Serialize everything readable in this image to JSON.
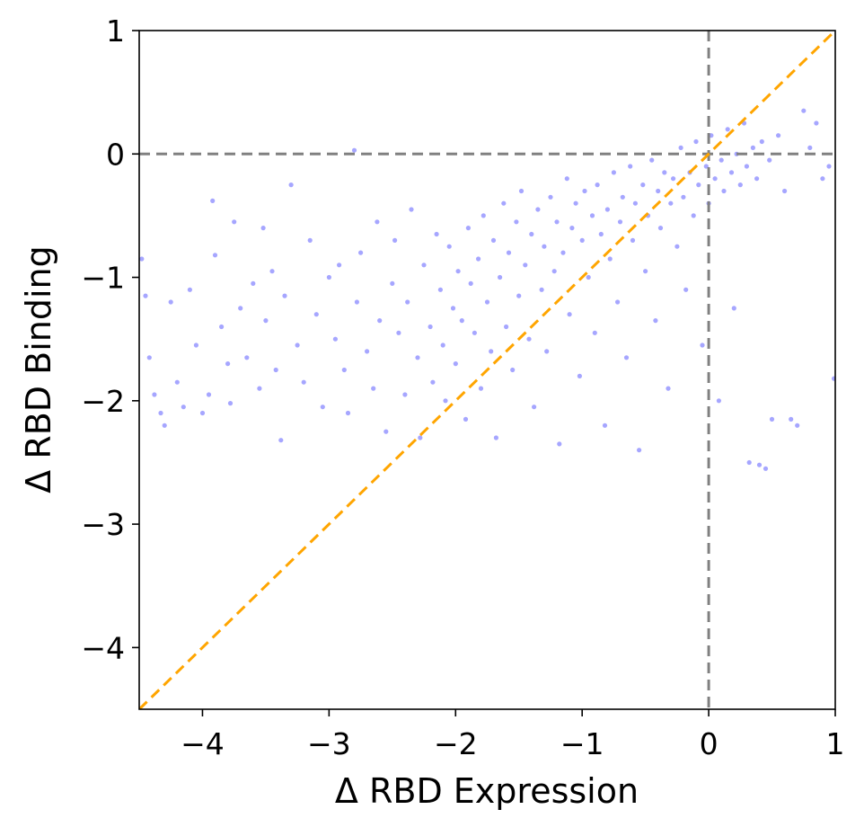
{
  "chart_data": {
    "type": "scatter",
    "title": "",
    "xlabel": "Δ RBD Expression",
    "ylabel": "Δ RBD Binding",
    "xlim": [
      -4.5,
      1
    ],
    "ylim": [
      -4.5,
      1
    ],
    "xticks": [
      -4,
      -3,
      -2,
      -1,
      0,
      1
    ],
    "yticks": [
      -4,
      -3,
      -2,
      -1,
      0,
      1
    ],
    "xtick_labels": [
      "−4",
      "−3",
      "−2",
      "−1",
      "0",
      "1"
    ],
    "ytick_labels": [
      "−4",
      "−3",
      "−2",
      "−1",
      "0",
      "1"
    ],
    "grid": false,
    "legend": "none",
    "reference_lines": [
      {
        "kind": "horizontal",
        "y": 0,
        "style": "dashed",
        "color": "#808080"
      },
      {
        "kind": "vertical",
        "x": 0,
        "style": "dashed",
        "color": "#808080"
      },
      {
        "kind": "diagonal",
        "slope": 1,
        "intercept": 0,
        "style": "dashed",
        "color": "#FFA500"
      }
    ],
    "series": [
      {
        "color": "#0000FF",
        "opacity": 0.35,
        "point_count": "approximately 4000",
        "points": [
          [
            -4.48,
            -0.85
          ],
          [
            -4.45,
            -1.15
          ],
          [
            -4.42,
            -1.65
          ],
          [
            -4.38,
            -1.95
          ],
          [
            -4.33,
            -2.1
          ],
          [
            -4.3,
            -2.2
          ],
          [
            -4.25,
            -1.2
          ],
          [
            -4.2,
            -1.85
          ],
          [
            -4.15,
            -2.05
          ],
          [
            -4.1,
            -1.1
          ],
          [
            -4.05,
            -1.55
          ],
          [
            -4.0,
            -2.1
          ],
          [
            -3.95,
            -1.95
          ],
          [
            -3.92,
            -0.38
          ],
          [
            -3.9,
            -0.82
          ],
          [
            -3.85,
            -1.4
          ],
          [
            -3.8,
            -1.7
          ],
          [
            -3.78,
            -2.02
          ],
          [
            -3.75,
            -0.55
          ],
          [
            -3.7,
            -1.25
          ],
          [
            -3.65,
            -1.65
          ],
          [
            -3.6,
            -1.05
          ],
          [
            -3.55,
            -1.9
          ],
          [
            -3.52,
            -0.6
          ],
          [
            -3.5,
            -1.35
          ],
          [
            -3.45,
            -0.95
          ],
          [
            -3.42,
            -1.75
          ],
          [
            -3.38,
            -2.32
          ],
          [
            -3.35,
            -1.15
          ],
          [
            -3.3,
            -0.25
          ],
          [
            -3.25,
            -1.55
          ],
          [
            -3.2,
            -1.85
          ],
          [
            -3.15,
            -0.7
          ],
          [
            -3.1,
            -1.3
          ],
          [
            -3.05,
            -2.05
          ],
          [
            -3.0,
            -1.0
          ],
          [
            -2.95,
            -1.5
          ],
          [
            -2.92,
            -0.9
          ],
          [
            -2.88,
            -1.75
          ],
          [
            -2.85,
            -2.1
          ],
          [
            -2.8,
            0.03
          ],
          [
            -2.78,
            -1.2
          ],
          [
            -2.75,
            -0.8
          ],
          [
            -2.7,
            -1.6
          ],
          [
            -2.65,
            -1.9
          ],
          [
            -2.62,
            -0.55
          ],
          [
            -2.6,
            -1.35
          ],
          [
            -2.55,
            -2.25
          ],
          [
            -2.5,
            -1.05
          ],
          [
            -2.48,
            -0.7
          ],
          [
            -2.45,
            -1.45
          ],
          [
            -2.4,
            -1.95
          ],
          [
            -2.38,
            -1.2
          ],
          [
            -2.35,
            -0.45
          ],
          [
            -2.3,
            -1.65
          ],
          [
            -2.28,
            -2.3
          ],
          [
            -2.25,
            -0.9
          ],
          [
            -2.2,
            -1.4
          ],
          [
            -2.18,
            -1.85
          ],
          [
            -2.15,
            -0.65
          ],
          [
            -2.12,
            -1.1
          ],
          [
            -2.1,
            -1.55
          ],
          [
            -2.08,
            -2.0
          ],
          [
            -2.05,
            -0.75
          ],
          [
            -2.02,
            -1.25
          ],
          [
            -2.0,
            -1.7
          ],
          [
            -1.98,
            -0.95
          ],
          [
            -1.95,
            -1.35
          ],
          [
            -1.92,
            -2.15
          ],
          [
            -1.9,
            -0.6
          ],
          [
            -1.88,
            -1.05
          ],
          [
            -1.85,
            -1.45
          ],
          [
            -1.82,
            -0.85
          ],
          [
            -1.8,
            -1.9
          ],
          [
            -1.78,
            -0.5
          ],
          [
            -1.75,
            -1.2
          ],
          [
            -1.72,
            -1.6
          ],
          [
            -1.7,
            -0.7
          ],
          [
            -1.68,
            -2.3
          ],
          [
            -1.65,
            -1.0
          ],
          [
            -1.62,
            -0.4
          ],
          [
            -1.6,
            -1.4
          ],
          [
            -1.58,
            -0.8
          ],
          [
            -1.55,
            -1.75
          ],
          [
            -1.52,
            -0.55
          ],
          [
            -1.5,
            -1.15
          ],
          [
            -1.48,
            -0.3
          ],
          [
            -1.45,
            -0.9
          ],
          [
            -1.42,
            -1.5
          ],
          [
            -1.4,
            -0.65
          ],
          [
            -1.38,
            -2.05
          ],
          [
            -1.35,
            -0.45
          ],
          [
            -1.32,
            -1.1
          ],
          [
            -1.3,
            -0.75
          ],
          [
            -1.28,
            -1.6
          ],
          [
            -1.25,
            -0.35
          ],
          [
            -1.22,
            -0.95
          ],
          [
            -1.2,
            -0.55
          ],
          [
            -1.18,
            -2.35
          ],
          [
            -1.15,
            -0.8
          ],
          [
            -1.12,
            -0.2
          ],
          [
            -1.1,
            -1.3
          ],
          [
            -1.08,
            -0.6
          ],
          [
            -1.05,
            -0.4
          ],
          [
            -1.02,
            -1.8
          ],
          [
            -1.0,
            -0.7
          ],
          [
            -0.98,
            -0.3
          ],
          [
            -0.95,
            -1.0
          ],
          [
            -0.92,
            -0.5
          ],
          [
            -0.9,
            -1.45
          ],
          [
            -0.88,
            -0.25
          ],
          [
            -0.85,
            -0.65
          ],
          [
            -0.82,
            -2.2
          ],
          [
            -0.8,
            -0.45
          ],
          [
            -0.78,
            -0.85
          ],
          [
            -0.75,
            -0.15
          ],
          [
            -0.72,
            -1.2
          ],
          [
            -0.7,
            -0.55
          ],
          [
            -0.68,
            -0.35
          ],
          [
            -0.65,
            -1.65
          ],
          [
            -0.62,
            -0.1
          ],
          [
            -0.6,
            -0.7
          ],
          [
            -0.58,
            -0.4
          ],
          [
            -0.55,
            -2.4
          ],
          [
            -0.52,
            -0.25
          ],
          [
            -0.5,
            -0.95
          ],
          [
            -0.48,
            -0.5
          ],
          [
            -0.45,
            -0.05
          ],
          [
            -0.42,
            -1.35
          ],
          [
            -0.4,
            -0.3
          ],
          [
            -0.38,
            -0.6
          ],
          [
            -0.35,
            -0.15
          ],
          [
            -0.32,
            -1.9
          ],
          [
            -0.3,
            -0.4
          ],
          [
            -0.28,
            -0.2
          ],
          [
            -0.25,
            -0.75
          ],
          [
            -0.22,
            0.05
          ],
          [
            -0.2,
            -0.35
          ],
          [
            -0.18,
            -1.1
          ],
          [
            -0.15,
            -0.15
          ],
          [
            -0.12,
            -0.5
          ],
          [
            -0.1,
            0.1
          ],
          [
            -0.08,
            -0.25
          ],
          [
            -0.05,
            -1.55
          ],
          [
            -0.02,
            -0.1
          ],
          [
            0.0,
            -0.4
          ],
          [
            0.02,
            0.15
          ],
          [
            0.05,
            -0.2
          ],
          [
            0.08,
            -2.0
          ],
          [
            0.1,
            -0.05
          ],
          [
            0.12,
            -0.3
          ],
          [
            0.15,
            0.2
          ],
          [
            0.18,
            -0.15
          ],
          [
            0.2,
            -1.25
          ],
          [
            0.22,
            0.0
          ],
          [
            0.25,
            -0.25
          ],
          [
            0.28,
            0.25
          ],
          [
            0.3,
            -0.1
          ],
          [
            0.32,
            -2.5
          ],
          [
            0.35,
            0.05
          ],
          [
            0.38,
            -0.2
          ],
          [
            0.4,
            -2.52
          ],
          [
            0.42,
            0.1
          ],
          [
            0.45,
            -2.55
          ],
          [
            0.48,
            -0.05
          ],
          [
            0.5,
            -2.15
          ],
          [
            0.55,
            0.15
          ],
          [
            0.6,
            -0.3
          ],
          [
            0.65,
            -2.15
          ],
          [
            0.7,
            -2.2
          ],
          [
            0.75,
            0.35
          ],
          [
            0.8,
            0.05
          ],
          [
            0.85,
            0.25
          ],
          [
            0.9,
            -0.2
          ],
          [
            0.95,
            -0.1
          ],
          [
            0.99,
            -1.82
          ]
        ]
      }
    ]
  }
}
